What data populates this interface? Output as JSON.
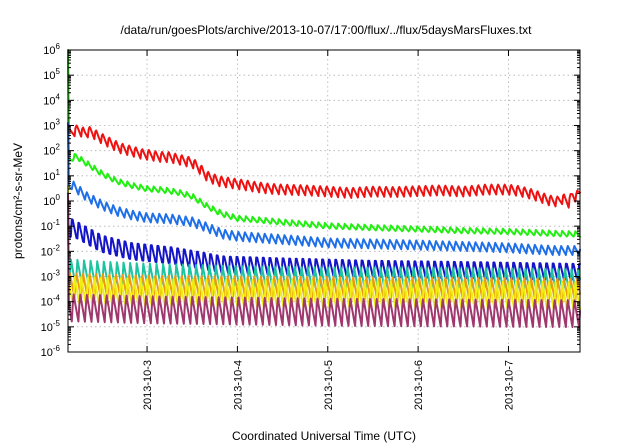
{
  "chart_data": {
    "type": "line",
    "title": "/data/run/goesPlots/archive/2013-10-07/17:00/flux/../flux/5daysMarsFluxes.txt",
    "xlabel": "Coordinated Universal Time (UTC)",
    "ylabel": "protons/cm²-s-sr-MeV",
    "y_scale": "log",
    "ylim": [
      1e-06,
      1000000.0
    ],
    "y_ticks": [
      {
        "value": -6,
        "label": "10",
        "exp": "-6"
      },
      {
        "value": -5,
        "label": "10",
        "exp": "-5"
      },
      {
        "value": -4,
        "label": "10",
        "exp": "-4"
      },
      {
        "value": -3,
        "label": "10",
        "exp": "-3"
      },
      {
        "value": -2,
        "label": "10",
        "exp": "-2"
      },
      {
        "value": -1,
        "label": "10",
        "exp": "-1"
      },
      {
        "value": 0,
        "label": "10",
        "exp": "0"
      },
      {
        "value": 1,
        "label": "10",
        "exp": "1"
      },
      {
        "value": 2,
        "label": "10",
        "exp": "2"
      },
      {
        "value": 3,
        "label": "10",
        "exp": "3"
      },
      {
        "value": 4,
        "label": "10",
        "exp": "4"
      },
      {
        "value": 5,
        "label": "10",
        "exp": "5"
      },
      {
        "value": 6,
        "label": "10",
        "exp": "6"
      }
    ],
    "xlim": [
      "2013-10-02 03:00",
      "2013-10-07 19:00"
    ],
    "x_ticks": [
      {
        "date": "2013-10-03",
        "label": "2013-10-3"
      },
      {
        "date": "2013-10-04",
        "label": "2013-10-4"
      },
      {
        "date": "2013-10-05",
        "label": "2013-10-5"
      },
      {
        "date": "2013-10-06",
        "label": "2013-10-6"
      },
      {
        "date": "2013-10-07",
        "label": "2013-10-7"
      }
    ],
    "grid": true,
    "legend": "none",
    "series": [
      {
        "color": "#ee1111",
        "points": [
          [
            "2013-10-02 03:00",
            400
          ],
          [
            "2013-10-02 04:30",
            600
          ],
          [
            "2013-10-02 05:30",
            700
          ],
          [
            "2013-10-02 07:30",
            520
          ],
          [
            "2013-10-02 09:00",
            600
          ],
          [
            "2013-10-02 11:00",
            380
          ],
          [
            "2013-10-02 14:00",
            220
          ],
          [
            "2013-10-02 17:00",
            130
          ],
          [
            "2013-10-02 20:00",
            100
          ],
          [
            "2013-10-02 23:00",
            75
          ],
          [
            "2013-10-03 01:00",
            70
          ],
          [
            "2013-10-03 03:00",
            60
          ],
          [
            "2013-10-03 06:00",
            58
          ],
          [
            "2013-10-03 09:00",
            45
          ],
          [
            "2013-10-03 12:00",
            35
          ],
          [
            "2013-10-03 14:00",
            20
          ],
          [
            "2013-10-03 16:00",
            10
          ],
          [
            "2013-10-03 19:00",
            6.5
          ],
          [
            "2013-10-03 22:00",
            5.5
          ],
          [
            "2013-10-04 00:00",
            5
          ],
          [
            "2013-10-04 04:00",
            4
          ],
          [
            "2013-10-04 08:00",
            3.3
          ],
          [
            "2013-10-04 12:00",
            3
          ],
          [
            "2013-10-04 18:00",
            2.8
          ],
          [
            "2013-10-05 00:00",
            2.5
          ],
          [
            "2013-10-05 06:00",
            2.2
          ],
          [
            "2013-10-05 12:00",
            2.5
          ],
          [
            "2013-10-05 18:00",
            2.4
          ],
          [
            "2013-10-06 00:00",
            2.6
          ],
          [
            "2013-10-06 06:00",
            2.8
          ],
          [
            "2013-10-06 12:00",
            2.5
          ],
          [
            "2013-10-06 18:00",
            3.0
          ],
          [
            "2013-10-07 00:00",
            3.0
          ],
          [
            "2013-10-07 03:00",
            2.6
          ],
          [
            "2013-10-07 06:00",
            2.0
          ],
          [
            "2013-10-07 09:00",
            1.4
          ],
          [
            "2013-10-07 11:00",
            1.1
          ],
          [
            "2013-10-07 13:00",
            1.0
          ],
          [
            "2013-10-07 14:30",
            1.3
          ],
          [
            "2013-10-07 16:00",
            0.9
          ],
          [
            "2013-10-07 17:00",
            1.8
          ],
          [
            "2013-10-07 18:00",
            1.5
          ],
          [
            "2013-10-07 19:00",
            2.5
          ]
        ],
        "osc_amp": 0.22
      },
      {
        "color": "#22ee11",
        "points": [
          [
            "2013-10-02 03:00",
            35
          ],
          [
            "2013-10-02 05:00",
            60
          ],
          [
            "2013-10-02 08:00",
            30
          ],
          [
            "2013-10-02 12:00",
            12
          ],
          [
            "2013-10-02 16:00",
            6
          ],
          [
            "2013-10-02 20:00",
            4
          ],
          [
            "2013-10-03 00:00",
            3
          ],
          [
            "2013-10-03 04:00",
            2.7
          ],
          [
            "2013-10-03 08:00",
            2.2
          ],
          [
            "2013-10-03 12:00",
            1.5
          ],
          [
            "2013-10-03 16:00",
            0.6
          ],
          [
            "2013-10-03 20:00",
            0.3
          ],
          [
            "2013-10-04 00:00",
            0.2
          ],
          [
            "2013-10-04 06:00",
            0.17
          ],
          [
            "2013-10-04 12:00",
            0.14
          ],
          [
            "2013-10-05 00:00",
            0.1
          ],
          [
            "2013-10-05 12:00",
            0.085
          ],
          [
            "2013-10-06 00:00",
            0.075
          ],
          [
            "2013-10-06 12:00",
            0.065
          ],
          [
            "2013-10-07 00:00",
            0.06
          ],
          [
            "2013-10-07 12:00",
            0.05
          ],
          [
            "2013-10-07 19:00",
            0.047
          ]
        ],
        "osc_amp": 0.12
      },
      {
        "color": "#1e6fe8",
        "points": [
          [
            "2013-10-02 03:00",
            3
          ],
          [
            "2013-10-02 04:00",
            4.5
          ],
          [
            "2013-10-02 08:00",
            1.5
          ],
          [
            "2013-10-02 12:00",
            0.7
          ],
          [
            "2013-10-02 16:00",
            0.4
          ],
          [
            "2013-10-02 20:00",
            0.28
          ],
          [
            "2013-10-03 00:00",
            0.22
          ],
          [
            "2013-10-03 06:00",
            0.2
          ],
          [
            "2013-10-03 12:00",
            0.15
          ],
          [
            "2013-10-03 16:00",
            0.09
          ],
          [
            "2013-10-03 20:00",
            0.05
          ],
          [
            "2013-10-04 00:00",
            0.04
          ],
          [
            "2013-10-04 12:00",
            0.03
          ],
          [
            "2013-10-05 00:00",
            0.022
          ],
          [
            "2013-10-05 12:00",
            0.02
          ],
          [
            "2013-10-06 00:00",
            0.018
          ],
          [
            "2013-10-06 12:00",
            0.016
          ],
          [
            "2013-10-07 00:00",
            0.014
          ],
          [
            "2013-10-07 12:00",
            0.011
          ],
          [
            "2013-10-07 19:00",
            0.011
          ]
        ],
        "osc_amp": 0.2
      },
      {
        "color": "#1414c8",
        "points": [
          [
            "2013-10-02 03:00",
            0.06
          ],
          [
            "2013-10-02 04:00",
            0.09
          ],
          [
            "2013-10-02 12:00",
            0.02
          ],
          [
            "2013-10-02 20:00",
            0.01
          ],
          [
            "2013-10-03 06:00",
            0.007
          ],
          [
            "2013-10-03 12:00",
            0.005
          ],
          [
            "2013-10-03 20:00",
            0.003
          ],
          [
            "2013-10-04 12:00",
            0.0025
          ],
          [
            "2013-10-05 12:00",
            0.002
          ],
          [
            "2013-10-06 12:00",
            0.0018
          ],
          [
            "2013-10-07 19:00",
            0.0015
          ]
        ],
        "osc_amp": 0.45
      },
      {
        "color": "#1ec4a0",
        "points": [
          [
            "2013-10-02 03:00",
            0.0015
          ],
          [
            "2013-10-02 12:00",
            0.0012
          ],
          [
            "2013-10-03 00:00",
            0.001
          ],
          [
            "2013-10-04 00:00",
            0.0008
          ],
          [
            "2013-10-05 00:00",
            0.0007
          ],
          [
            "2013-10-06 00:00",
            0.0007
          ],
          [
            "2013-10-07 19:00",
            0.0006
          ]
        ],
        "osc_amp": 0.55
      },
      {
        "color": "#ee9a11",
        "points": [
          [
            "2013-10-02 03:00",
            0.0005
          ],
          [
            "2013-10-03 00:00",
            0.0004
          ],
          [
            "2013-10-05 00:00",
            0.00035
          ],
          [
            "2013-10-07 19:00",
            0.0003
          ]
        ],
        "osc_amp": 0.55
      },
      {
        "color": "#eeee11",
        "points": [
          [
            "2013-10-02 03:00",
            0.00025
          ],
          [
            "2013-10-03 00:00",
            0.0002
          ],
          [
            "2013-10-05 00:00",
            0.00017
          ],
          [
            "2013-10-07 19:00",
            0.00015
          ]
        ],
        "osc_amp": 0.6
      },
      {
        "color": "#a0386e",
        "points": [
          [
            "2013-10-02 03:00",
            6e-05
          ],
          [
            "2013-10-03 00:00",
            5e-05
          ],
          [
            "2013-10-05 00:00",
            4e-05
          ],
          [
            "2013-10-07 19:00",
            3.5e-05
          ]
        ],
        "osc_amp": 0.6
      }
    ]
  }
}
